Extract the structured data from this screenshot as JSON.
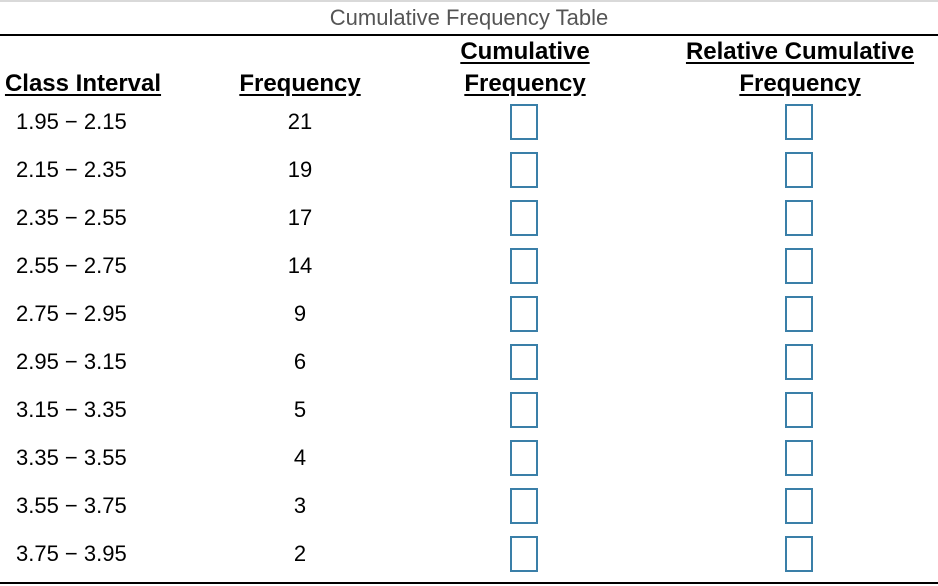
{
  "table": {
    "title": "Cumulative Frequency Table",
    "headers": {
      "class_interval": "Class Interval",
      "frequency": "Frequency",
      "cumulative_line1": "Cumulative",
      "cumulative_line2": "Frequency",
      "relative_line1": "Relative Cumulative",
      "relative_line2": "Frequency"
    },
    "rows": [
      {
        "interval": "1.95 − 2.15",
        "frequency": "21"
      },
      {
        "interval": "2.15 − 2.35",
        "frequency": "19"
      },
      {
        "interval": "2.35 − 2.55",
        "frequency": "17"
      },
      {
        "interval": "2.55 − 2.75",
        "frequency": "14"
      },
      {
        "interval": "2.75 − 2.95",
        "frequency": "9"
      },
      {
        "interval": "2.95 − 3.15",
        "frequency": "6"
      },
      {
        "interval": "3.15 − 3.35",
        "frequency": "5"
      },
      {
        "interval": "3.35 − 3.55",
        "frequency": "4"
      },
      {
        "interval": "3.55 − 3.75",
        "frequency": "3"
      },
      {
        "interval": "3.75 − 3.95",
        "frequency": "2"
      }
    ]
  },
  "colors": {
    "input_border": "#3a7fa8",
    "title_text": "#555555"
  }
}
